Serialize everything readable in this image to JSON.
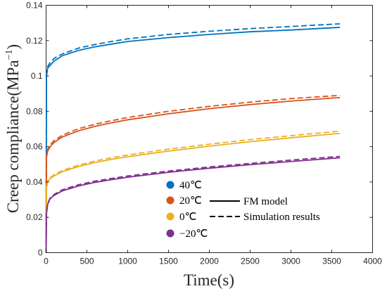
{
  "chart_data": {
    "type": "line",
    "xlabel": "Time(s)",
    "ylabel": "Creep compliance(MPa",
    "ylabel_sup": "−1",
    "ylabel_close": ")",
    "xlim": [
      0,
      4000
    ],
    "ylim": [
      0,
      0.14
    ],
    "x_ticks": [
      "0",
      "500",
      "1000",
      "1500",
      "2000",
      "2500",
      "3000",
      "3500",
      "4000"
    ],
    "y_ticks": [
      "0",
      "0.02",
      "0.04",
      "0.06",
      "0.08",
      "0.1",
      "0.12",
      "0.14"
    ],
    "grid": false,
    "legend_temperature": [
      "40℃",
      "20℃",
      "0℃",
      "−20℃"
    ],
    "legend_style": [
      "FM model",
      "Simulation results"
    ],
    "series": [
      {
        "name": "40℃",
        "color": "#0072BD",
        "fm_model": [
          [
            0,
            0
          ],
          [
            5,
            0.1
          ],
          [
            20,
            0.1045
          ],
          [
            50,
            0.106
          ],
          [
            100,
            0.1085
          ],
          [
            200,
            0.1115
          ],
          [
            400,
            0.1145
          ],
          [
            600,
            0.1165
          ],
          [
            800,
            0.118
          ],
          [
            1000,
            0.1195
          ],
          [
            1500,
            0.1217
          ],
          [
            2000,
            0.1235
          ],
          [
            2500,
            0.125
          ],
          [
            3000,
            0.126
          ],
          [
            3600,
            0.1275
          ]
        ],
        "simulation": [
          [
            0,
            0
          ],
          [
            5,
            0.101
          ],
          [
            20,
            0.1055
          ],
          [
            50,
            0.1075
          ],
          [
            100,
            0.11
          ],
          [
            200,
            0.1125
          ],
          [
            400,
            0.1158
          ],
          [
            600,
            0.1178
          ],
          [
            800,
            0.1195
          ],
          [
            1000,
            0.121
          ],
          [
            1500,
            0.1235
          ],
          [
            2000,
            0.1253
          ],
          [
            2500,
            0.1268
          ],
          [
            3000,
            0.128
          ],
          [
            3600,
            0.1295
          ]
        ]
      },
      {
        "name": "20℃",
        "color": "#D95319",
        "fm_model": [
          [
            0,
            0
          ],
          [
            5,
            0.054
          ],
          [
            20,
            0.0575
          ],
          [
            50,
            0.06
          ],
          [
            100,
            0.0625
          ],
          [
            200,
            0.0655
          ],
          [
            400,
            0.069
          ],
          [
            600,
            0.0715
          ],
          [
            800,
            0.0735
          ],
          [
            1000,
            0.0752
          ],
          [
            1500,
            0.0786
          ],
          [
            2000,
            0.0815
          ],
          [
            2500,
            0.0838
          ],
          [
            3000,
            0.0858
          ],
          [
            3600,
            0.0878
          ]
        ],
        "simulation": [
          [
            0,
            0
          ],
          [
            5,
            0.055
          ],
          [
            20,
            0.0585
          ],
          [
            50,
            0.061
          ],
          [
            100,
            0.0635
          ],
          [
            200,
            0.0665
          ],
          [
            400,
            0.0702
          ],
          [
            600,
            0.0727
          ],
          [
            800,
            0.0747
          ],
          [
            1000,
            0.0765
          ],
          [
            1500,
            0.08
          ],
          [
            2000,
            0.0828
          ],
          [
            2500,
            0.0852
          ],
          [
            3000,
            0.0872
          ],
          [
            3600,
            0.089
          ]
        ]
      },
      {
        "name": "0℃",
        "color": "#EDB120",
        "fm_model": [
          [
            0,
            0
          ],
          [
            5,
            0.037
          ],
          [
            20,
            0.04
          ],
          [
            50,
            0.042
          ],
          [
            100,
            0.0435
          ],
          [
            200,
            0.0458
          ],
          [
            400,
            0.0488
          ],
          [
            600,
            0.051
          ],
          [
            800,
            0.0528
          ],
          [
            1000,
            0.0543
          ],
          [
            1500,
            0.0575
          ],
          [
            2000,
            0.0603
          ],
          [
            2500,
            0.0628
          ],
          [
            3000,
            0.065
          ],
          [
            3600,
            0.0675
          ]
        ],
        "simulation": [
          [
            0,
            0
          ],
          [
            5,
            0.0375
          ],
          [
            20,
            0.0405
          ],
          [
            50,
            0.0425
          ],
          [
            100,
            0.0442
          ],
          [
            200,
            0.0465
          ],
          [
            400,
            0.0496
          ],
          [
            600,
            0.0519
          ],
          [
            800,
            0.0537
          ],
          [
            1000,
            0.0553
          ],
          [
            1500,
            0.0586
          ],
          [
            2000,
            0.0614
          ],
          [
            2500,
            0.064
          ],
          [
            3000,
            0.0662
          ],
          [
            3600,
            0.0688
          ]
        ]
      },
      {
        "name": "−20℃",
        "color": "#7E2F8E",
        "fm_model": [
          [
            0,
            0
          ],
          [
            5,
            0.022
          ],
          [
            20,
            0.0275
          ],
          [
            50,
            0.0305
          ],
          [
            100,
            0.0325
          ],
          [
            200,
            0.035
          ],
          [
            400,
            0.0378
          ],
          [
            600,
            0.0398
          ],
          [
            800,
            0.0413
          ],
          [
            1000,
            0.0427
          ],
          [
            1500,
            0.0455
          ],
          [
            2000,
            0.0478
          ],
          [
            2500,
            0.0498
          ],
          [
            3000,
            0.0516
          ],
          [
            3600,
            0.0537
          ]
        ],
        "simulation": [
          [
            0,
            0
          ],
          [
            5,
            0.0225
          ],
          [
            20,
            0.028
          ],
          [
            50,
            0.031
          ],
          [
            100,
            0.033
          ],
          [
            200,
            0.0356
          ],
          [
            400,
            0.0385
          ],
          [
            600,
            0.0405
          ],
          [
            800,
            0.042
          ],
          [
            1000,
            0.0434
          ],
          [
            1500,
            0.0462
          ],
          [
            2000,
            0.0485
          ],
          [
            2500,
            0.0505
          ],
          [
            3000,
            0.0524
          ],
          [
            3600,
            0.0545
          ]
        ]
      }
    ]
  }
}
